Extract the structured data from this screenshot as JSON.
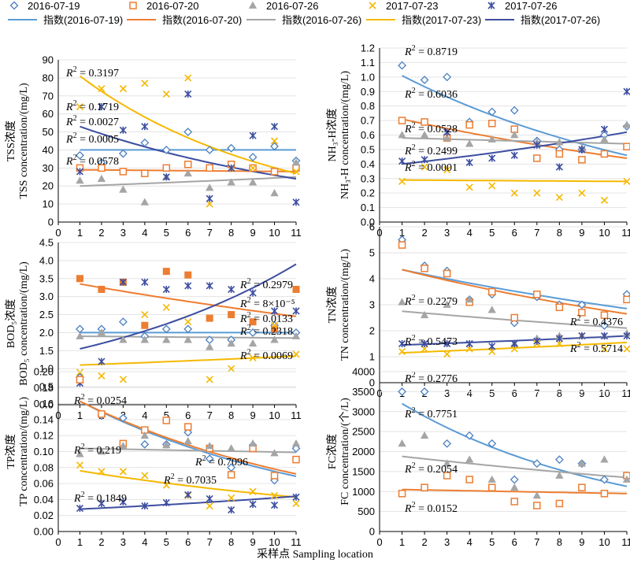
{
  "legend": {
    "markers": [
      {
        "label": "2016-07-19",
        "series": "s0719"
      },
      {
        "label": "2016-07-20",
        "series": "s0720"
      },
      {
        "label": "2016-07-26",
        "series": "s0726"
      },
      {
        "label": "2017-07-23",
        "series": "s1723"
      },
      {
        "label": "2017-07-26",
        "series": "s1726"
      }
    ],
    "trends": [
      {
        "label": "指数(2016-07-19)",
        "series": "s0719"
      },
      {
        "label": "指数(2016-07-20)",
        "series": "s0720"
      },
      {
        "label": "指数(2016-07-26)",
        "series": "s0726"
      },
      {
        "label": "指数(2017-07-23)",
        "series": "s1723"
      },
      {
        "label": "指数(2017-07-26)",
        "series": "s1726"
      }
    ]
  },
  "colors": {
    "s0719": "#4a7fc0",
    "s0720": "#ed7d31",
    "s0726": "#a5a5a5",
    "s1723": "#f5b800",
    "s1726": "#3d4ea0",
    "trend_s0719": "#5b9bd5",
    "trend_s0720": "#ed7d31",
    "trend_s0726": "#a5a5a5",
    "trend_s1723": "#f5b800",
    "trend_s1726": "#3d4ea0"
  },
  "xlabel": "采样点 Sampling location",
  "chart_data": [
    {
      "id": "tss",
      "type": "scatter",
      "ylabel_cn": "TSS浓度",
      "ylabel_en": "TSS concentration/(mg/L)",
      "ylim": [
        0,
        90
      ],
      "ytick": 10,
      "xlim": [
        0,
        11
      ],
      "yticks": [
        "0",
        "10",
        "20",
        "30",
        "40",
        "50",
        "60",
        "70",
        "80",
        "90"
      ],
      "xticks": [
        "0",
        "1",
        "2",
        "3",
        "4",
        "5",
        "6",
        "7",
        "8",
        "9",
        "10",
        "11"
      ],
      "series": [
        {
          "key": "s0719",
          "marker": "diamond-open",
          "values": [
            37,
            33,
            38,
            44,
            40,
            50,
            40,
            41,
            36,
            42,
            34
          ],
          "trend": [
            40,
            40
          ]
        },
        {
          "key": "s0720",
          "marker": "square-open",
          "values": [
            30,
            30,
            28,
            27,
            30,
            32,
            30,
            32,
            30,
            28,
            30
          ],
          "trend": [
            29,
            28
          ]
        },
        {
          "key": "s0726",
          "marker": "triangle",
          "values": [
            23,
            24,
            18,
            11,
            25,
            27,
            19,
            22,
            22,
            16,
            33
          ],
          "trend": [
            20,
            25
          ]
        },
        {
          "key": "s1723",
          "marker": "x",
          "values": [
            64,
            74,
            74,
            77,
            71,
            80,
            10,
            30,
            30,
            45,
            28
          ],
          "trend": [
            81,
            27
          ]
        },
        {
          "key": "s1726",
          "marker": "star",
          "values": [
            28,
            64,
            51,
            53,
            25,
            71,
            13,
            30,
            48,
            53,
            11
          ],
          "trend": [
            53,
            24
          ]
        }
      ],
      "r2": [
        {
          "text": "= 0.3197"
        },
        {
          "text": "= 0.1719"
        },
        {
          "text": "= 0.0027"
        },
        {
          "text": "= 0.0005"
        },
        {
          "text": "= 0.0578"
        }
      ]
    },
    {
      "id": "nh3",
      "type": "scatter",
      "ylabel_cn": "NH₃-H浓度",
      "ylabel_en": "NH₃-H concentration/(mg/L)",
      "ylim": [
        0,
        1.2
      ],
      "ytick": 0.1,
      "xlim": [
        0,
        11
      ],
      "yticks": [
        "0.0",
        "0.1",
        "0.2",
        "0.3",
        "0.4",
        "0.5",
        "0.6",
        "0.7",
        "0.8",
        "0.9",
        "1.0",
        "1.1",
        "1.2"
      ],
      "xticks": [
        "0",
        "1",
        "2",
        "3",
        "4",
        "5",
        "6",
        "7",
        "8",
        "9",
        "10",
        "11"
      ],
      "series": [
        {
          "key": "s0719",
          "marker": "diamond-open",
          "values": [
            1.08,
            0.98,
            1.0,
            0.69,
            0.76,
            0.77,
            0.56,
            0.5,
            0.5,
            0.6,
            0.66
          ],
          "trend": [
            1.01,
            0.46
          ]
        },
        {
          "key": "s0720",
          "marker": "square-open",
          "values": [
            0.7,
            0.69,
            0.58,
            0.67,
            0.68,
            0.64,
            0.44,
            0.47,
            0.43,
            0.47,
            0.52
          ],
          "trend": [
            0.71,
            0.44
          ]
        },
        {
          "key": "s0726",
          "marker": "triangle",
          "values": [
            0.6,
            0.6,
            0.58,
            0.54,
            0.57,
            0.6,
            0.55,
            0.55,
            0.51,
            0.57,
            0.67
          ],
          "trend": [
            0.58,
            0.54
          ]
        },
        {
          "key": "s1723",
          "marker": "x",
          "values": [
            0.28,
            0.38,
            0.36,
            0.24,
            0.25,
            0.2,
            0.2,
            0.17,
            0.2,
            0.15,
            0.28
          ],
          "trend": [
            0.29,
            0.28
          ]
        },
        {
          "key": "s1726",
          "marker": "star",
          "values": [
            0.42,
            0.43,
            0.62,
            0.41,
            0.44,
            0.46,
            0.53,
            0.38,
            0.5,
            0.64,
            0.9
          ],
          "trend": [
            0.4,
            0.62
          ]
        }
      ],
      "r2": [
        {
          "text": "= 0.8719"
        },
        {
          "text": "= 0.6036"
        },
        {
          "text": "= 0.0528"
        },
        {
          "text": "= 0.2499"
        },
        {
          "text": "= 0.0001"
        }
      ]
    },
    {
      "id": "bod",
      "type": "scatter",
      "ylabel_cn": "BOD₅浓度",
      "ylabel_en": "BOD₅ concentration/(mg/L)",
      "ylim": [
        0,
        4.5
      ],
      "ytick": 0.5,
      "xlim": [
        0,
        11
      ],
      "yticks": [
        "0.0",
        "0.5",
        "1.0",
        "1.5",
        "2.0",
        "2.5",
        "3.0",
        "3.5",
        "4.0",
        "4.5"
      ],
      "xticks": [
        "0",
        "1",
        "2",
        "3",
        "4",
        "5",
        "6",
        "7",
        "8",
        "9",
        "10",
        "11"
      ],
      "series": [
        {
          "key": "s0719",
          "marker": "diamond-open",
          "values": [
            2.1,
            2.1,
            2.3,
            1.9,
            2.1,
            2.1,
            1.8,
            1.8,
            2.0,
            2.2,
            2.0
          ],
          "trend": [
            2.0,
            2.0
          ]
        },
        {
          "key": "s0720",
          "marker": "square-filled",
          "values": [
            3.5,
            3.2,
            3.4,
            2.2,
            3.7,
            3.6,
            2.4,
            2.5,
            2.3,
            2.1,
            3.2
          ],
          "trend": [
            3.35,
            2.45
          ]
        },
        {
          "key": "s0726",
          "marker": "triangle",
          "values": [
            1.9,
            2.0,
            1.8,
            1.8,
            1.8,
            1.8,
            1.6,
            1.7,
            1.7,
            1.8,
            1.9
          ],
          "trend": [
            1.9,
            1.85
          ]
        },
        {
          "key": "s1723",
          "marker": "x",
          "values": [
            0.9,
            0.8,
            0.7,
            2.5,
            2.7,
            2.3,
            0.7,
            1.0,
            1.3,
            2.2,
            1.4
          ],
          "trend": [
            1.1,
            1.35
          ]
        },
        {
          "key": "s1726",
          "marker": "star",
          "values": [
            0.6,
            1.2,
            3.4,
            3.4,
            3.2,
            3.3,
            3.3,
            3.2,
            3.1,
            2.6,
            2.6
          ],
          "trend": [
            1.55,
            3.9
          ]
        }
      ],
      "r2": [
        {
          "text": "= 0.2979"
        },
        {
          "text": "= 0.2318"
        },
        {
          "text": "= 8×10⁻⁵"
        },
        {
          "text": "= 0.0133"
        },
        {
          "text": "= 0.0069"
        }
      ]
    },
    {
      "id": "tn",
      "type": "scatter",
      "ylabel_cn": "TN浓度",
      "ylabel_en": "TN concentration/(mg/L)",
      "ylim": [
        0,
        6
      ],
      "ytick": 1,
      "xlim": [
        0,
        11
      ],
      "yticks": [
        "0",
        "1",
        "2",
        "3",
        "4",
        "5",
        "6"
      ],
      "xticks": [
        "0",
        "1",
        "2",
        "3",
        "4",
        "5",
        "6",
        "7",
        "8",
        "9",
        "10",
        "11"
      ],
      "series": [
        {
          "key": "s0719",
          "marker": "diamond-open",
          "values": [
            5.5,
            4.5,
            4.3,
            3.2,
            3.4,
            2.3,
            3.3,
            3.0,
            3.0,
            2.2,
            3.4
          ],
          "trend": [
            4.35,
            2.85
          ]
        },
        {
          "key": "s0720",
          "marker": "square-open",
          "values": [
            5.3,
            4.4,
            4.2,
            3.1,
            3.5,
            2.5,
            3.4,
            2.9,
            2.7,
            2.6,
            3.2
          ],
          "trend": [
            4.35,
            2.65
          ]
        },
        {
          "key": "s0726",
          "marker": "triangle",
          "values": [
            3.1,
            2.6,
            3.0,
            3.2,
            2.8,
            1.5,
            1.7,
            1.8,
            1.8,
            1.8,
            1.9
          ],
          "trend": [
            2.75,
            2.1
          ]
        },
        {
          "key": "s1723",
          "marker": "x",
          "values": [
            1.2,
            1.3,
            1.1,
            1.3,
            1.2,
            1.3,
            1.5,
            1.5,
            1.8,
            1.3,
            1.3
          ],
          "trend": [
            1.15,
            1.55
          ]
        },
        {
          "key": "s1726",
          "marker": "star",
          "values": [
            1.5,
            1.5,
            1.5,
            1.5,
            1.4,
            1.5,
            1.6,
            1.7,
            1.8,
            1.8,
            1.8
          ],
          "trend": [
            1.45,
            1.8
          ]
        }
      ],
      "r2": [
        {
          "text": "= 0.4376"
        },
        {
          "text": "= 0.2279"
        },
        {
          "text": "= 0.5714"
        },
        {
          "text": "= 0.5473"
        },
        {
          "text": "= 0.2776"
        }
      ]
    },
    {
      "id": "tp",
      "type": "scatter",
      "ylabel_cn": "TP浓度",
      "ylabel_en": "TP concentration/(mg/L)",
      "ylim": [
        0,
        0.2
      ],
      "ytick": 0.02,
      "xlim": [
        0,
        11
      ],
      "yticks": [
        "0.00",
        "0.02",
        "0.04",
        "0.06",
        "0.08",
        "0.10",
        "0.12",
        "0.14",
        "0.16",
        "0.18",
        "0.20"
      ],
      "xticks": [
        "0",
        "1",
        "2",
        "3",
        "4",
        "5",
        "6",
        "7",
        "8",
        "9",
        "10",
        "11"
      ],
      "series": [
        {
          "key": "s0719",
          "marker": "diamond-open",
          "values": [
            0.193,
            0.145,
            0.142,
            0.109,
            0.109,
            0.124,
            0.091,
            0.08,
            0.108,
            0.064,
            0.104
          ],
          "trend": [
            0.163,
            0.069
          ]
        },
        {
          "key": "s0720",
          "marker": "square-open",
          "values": [
            0.19,
            0.147,
            0.11,
            0.127,
            0.139,
            0.131,
            0.104,
            0.071,
            0.104,
            0.07,
            0.09
          ],
          "trend": [
            0.163,
            0.072
          ]
        },
        {
          "key": "s0726",
          "marker": "triangle",
          "values": [
            0.097,
            0.1,
            0.107,
            0.12,
            0.108,
            0.113,
            0.107,
            0.104,
            0.11,
            0.098,
            0.11
          ],
          "trend": [
            0.104,
            0.099
          ]
        },
        {
          "key": "s1723",
          "marker": "x",
          "values": [
            0.083,
            0.075,
            0.075,
            0.07,
            0.058,
            0.045,
            0.032,
            0.042,
            0.05,
            0.045,
            0.035
          ],
          "trend": [
            0.076,
            0.043
          ]
        },
        {
          "key": "s1726",
          "marker": "star",
          "values": [
            0.029,
            0.035,
            0.037,
            0.032,
            0.036,
            0.046,
            0.041,
            0.027,
            0.034,
            0.033,
            0.043
          ],
          "trend": [
            0.028,
            0.044
          ]
        }
      ],
      "r2": [
        {
          "text": "= 0.0254"
        },
        {
          "text": "= 0.7035"
        },
        {
          "text": "= 0.219"
        },
        {
          "text": "= 0.7096"
        },
        {
          "text": "= 0.1849"
        }
      ]
    },
    {
      "id": "fc",
      "type": "scatter",
      "ylabel_cn": "FC浓度",
      "ylabel_en": "FC concentration/(个/L)",
      "ylim": [
        0,
        4000
      ],
      "ytick": 500,
      "xlim": [
        0,
        11
      ],
      "yticks": [
        "0",
        "500",
        "1000",
        "1500",
        "2000",
        "2500",
        "3000",
        "3500",
        "4000"
      ],
      "xticks": [
        "0",
        "1",
        "2",
        "3",
        "4",
        "5",
        "6",
        "7",
        "8",
        "9",
        "10",
        "11"
      ],
      "series": [
        {
          "key": "s0719",
          "marker": "diamond-open",
          "values": [
            3500,
            3500,
            2200,
            2400,
            2200,
            1300,
            1700,
            1800,
            1700,
            1300,
            1400
          ],
          "trend": [
            3200,
            1130
          ]
        },
        {
          "key": "s0720",
          "marker": "square-open",
          "values": [
            950,
            1100,
            1400,
            1300,
            1100,
            750,
            650,
            700,
            1100,
            950,
            1400
          ],
          "trend": [
            1050,
            950
          ]
        },
        {
          "key": "s0726",
          "marker": "triangle",
          "values": [
            2200,
            2400,
            1700,
            1800,
            1300,
            1100,
            900,
            1400,
            1700,
            1800,
            1300
          ],
          "trend": [
            1880,
            1350
          ]
        }
      ],
      "r2": [
        {
          "text": "= 0.7751"
        },
        {
          "text": "= 0.2054"
        },
        {
          "text": "= 0.0152"
        }
      ]
    }
  ]
}
